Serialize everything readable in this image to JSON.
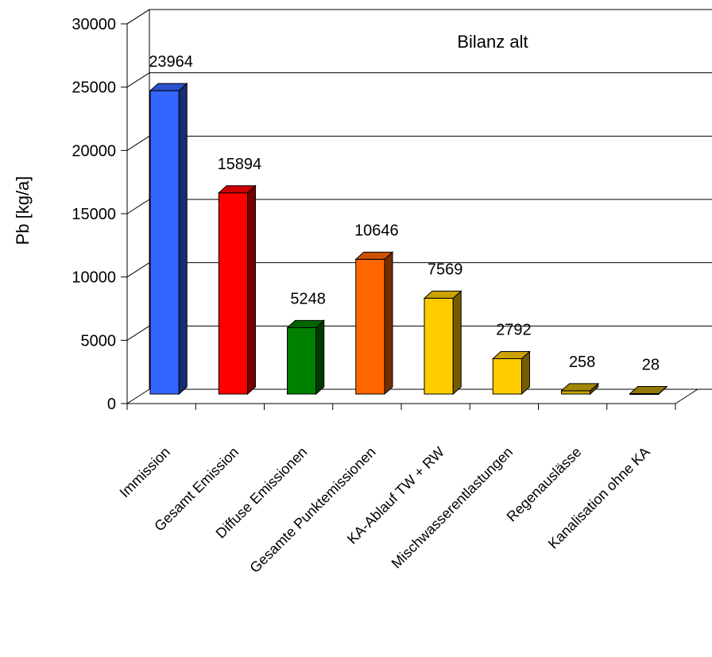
{
  "chart_data": {
    "type": "bar",
    "title": "Bilanz alt",
    "ylabel": "Pb [kg/a]",
    "xlabel": "",
    "ylim": [
      0,
      30000
    ],
    "yticks": [
      0,
      5000,
      10000,
      15000,
      20000,
      25000,
      30000
    ],
    "grid": true,
    "categories": [
      "Immission",
      "Gesamt Emission",
      "Diffuse Emissionen",
      "Gesamte Punktemissionen",
      "KA-Ablauf TW + RW",
      "Mischwasserentlastungen",
      "Regenauslässe",
      "Kanalisation ohne KA"
    ],
    "values": [
      23964,
      15894,
      5248,
      10646,
      7569,
      2792,
      258,
      28
    ],
    "data_labels": [
      "23964",
      "15894",
      "5248",
      "10646",
      "7569",
      "2792",
      "258",
      "28"
    ],
    "colors": [
      "#3366FF",
      "#FF0000",
      "#008000",
      "#FF6600",
      "#FFCC00",
      "#FFCC00",
      "#CCA800",
      "#B89600"
    ]
  }
}
